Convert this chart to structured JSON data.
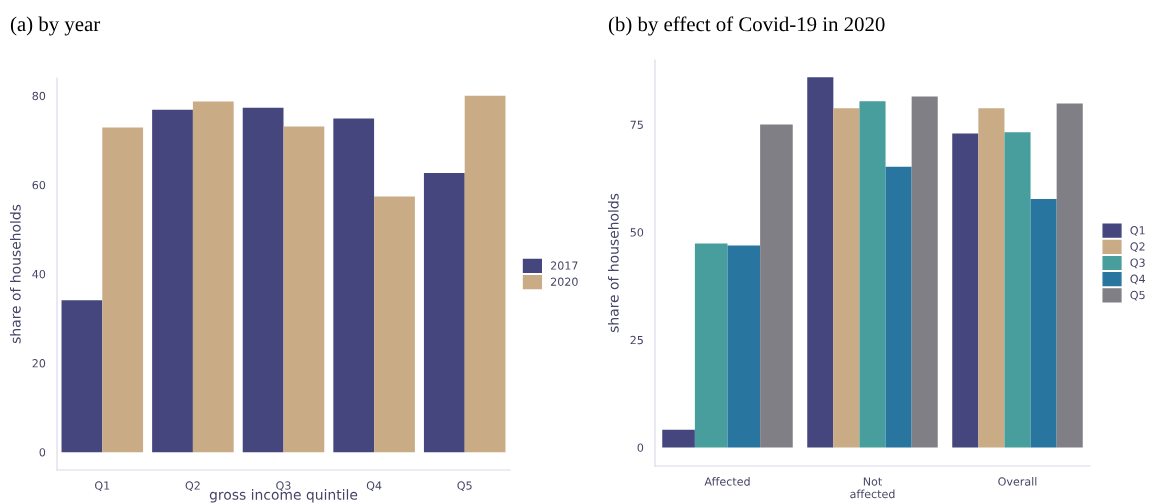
{
  "chart_data": [
    {
      "type": "bar",
      "title": "(a) by year",
      "xlabel": "gross income quintile",
      "ylabel": "share of households",
      "categories": [
        "Q1",
        "Q2",
        "Q3",
        "Q4",
        "Q5"
      ],
      "series": [
        {
          "name": "2017",
          "color": "#45467e",
          "values": [
            34.1,
            76.9,
            77.3,
            74.9,
            62.7
          ]
        },
        {
          "name": "2020",
          "color": "#c9ab86",
          "values": [
            72.9,
            78.7,
            73.1,
            57.4,
            80.0
          ]
        }
      ],
      "ylim": [
        -4,
        84
      ],
      "yticks": [
        0,
        20,
        40,
        60,
        80
      ],
      "grid": false,
      "legend": "right"
    },
    {
      "type": "bar",
      "title": "(b) by effect of Covid-19 in 2020",
      "ylabel": "share of households",
      "categories": [
        "Affected",
        "Not\naffected",
        "Overall"
      ],
      "series": [
        {
          "name": "Q1",
          "color": "#45467e",
          "values": [
            4.1,
            86.0,
            72.9
          ]
        },
        {
          "name": "Q2",
          "color": "#c9ab86",
          "values": [
            null,
            78.8,
            78.8
          ]
        },
        {
          "name": "Q3",
          "color": "#479e9c",
          "values": [
            47.4,
            80.4,
            73.2
          ]
        },
        {
          "name": "Q4",
          "color": "#2876a0",
          "values": [
            46.9,
            65.2,
            57.7
          ]
        },
        {
          "name": "Q5",
          "color": "#807f85",
          "values": [
            75.0,
            81.5,
            79.9
          ]
        }
      ],
      "ylim": [
        -4.3,
        90
      ],
      "yticks": [
        0,
        25,
        50,
        75
      ],
      "grid": false,
      "legend": "right"
    }
  ]
}
